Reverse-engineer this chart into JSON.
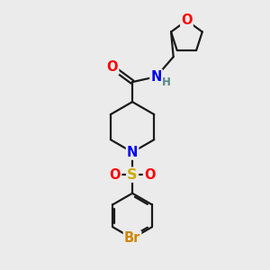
{
  "bg_color": "#ebebeb",
  "bond_color": "#1a1a1a",
  "atom_colors": {
    "O": "#ff0000",
    "N": "#0000ee",
    "S": "#ccaa00",
    "Br": "#cc8800",
    "H": "#558888",
    "C": "#1a1a1a"
  },
  "line_width": 1.6,
  "font_size": 10.5,
  "figsize": [
    3.0,
    3.0
  ],
  "dpi": 100,
  "xlim": [
    0,
    10
  ],
  "ylim": [
    0,
    10
  ]
}
